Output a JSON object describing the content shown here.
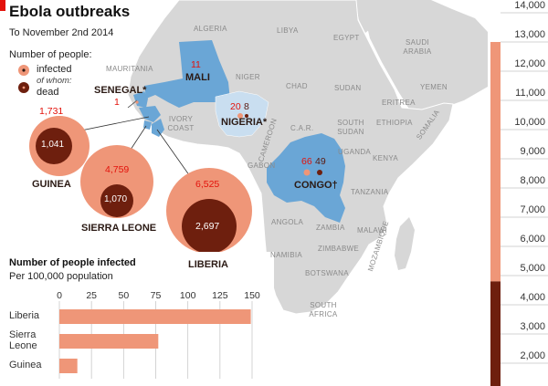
{
  "header": {
    "title": "Ebola outbreaks",
    "subtitle": "To November 2nd 2014",
    "legend_title": "Number of people:",
    "legend_infected": "infected",
    "legend_of_whom": "of whom:",
    "legend_dead": "dead"
  },
  "colors": {
    "infected": "#ef9678",
    "dead": "#6e1f0e",
    "affected_country": "#6aa6d6",
    "light_affected": "#c9def0",
    "land": "#d7d7d7",
    "red_accent": "#e3120b"
  },
  "map": {
    "countries": [
      "ALGERIA",
      "LIBYA",
      "EGYPT",
      "SAUDI ARABIA",
      "YEMEN",
      "MAURITANIA",
      "NIGER",
      "CHAD",
      "SUDAN",
      "ERITREA",
      "ETHIOPIA",
      "SOUTH SUDAN",
      "IVORY COAST",
      "SOMALIA",
      "C.A.R.",
      "CAMEROON",
      "GABON",
      "UGANDA",
      "KENYA",
      "TANZANIA",
      "ANGOLA",
      "ZAMBIA",
      "MALAWI",
      "ZIMBABWE",
      "NAMIBIA",
      "BOTSWANA",
      "MOZAMBIQUE",
      "SOUTH AFRICA"
    ],
    "outbreaks": {
      "mali": {
        "name": "MALI",
        "infected": "11"
      },
      "senegal": {
        "name": "SENEGAL*",
        "infected": "1"
      },
      "nigeria": {
        "name": "NIGERIA*",
        "infected": "20",
        "dead": "8"
      },
      "congo": {
        "name": "CONGO†",
        "infected": "66",
        "dead": "49"
      },
      "guinea": {
        "name": "GUINEA",
        "infected": "1,731",
        "dead": "1,041"
      },
      "sierra_leone": {
        "name": "SIERRA LEONE",
        "infected": "4,759",
        "dead": "1,070"
      },
      "liberia": {
        "name": "LIBERIA",
        "infected": "6,525",
        "dead": "2,697"
      }
    }
  },
  "chart_data": {
    "type": "bar",
    "title": "Number of people infected",
    "subtitle": "Per 100,000 population",
    "categories": [
      "Liberia",
      "Sierra Leone",
      "Guinea"
    ],
    "category_labels": [
      [
        "Liberia"
      ],
      [
        "Sierra",
        "Leone"
      ],
      [
        "Guinea"
      ]
    ],
    "values": [
      149,
      77,
      14
    ],
    "xlim": [
      0,
      150
    ],
    "xticks": [
      "0",
      "25",
      "50",
      "75",
      "100",
      "125",
      "150"
    ]
  },
  "scale": {
    "labels": [
      "14,000",
      "13,000",
      "12,000",
      "11,000",
      "10,000",
      "9,000",
      "8,000",
      "7,000",
      "6,000",
      "5,000",
      "4,000",
      "3,000",
      "2,000"
    ],
    "infected_level": 13000,
    "dead_level": 4800
  }
}
